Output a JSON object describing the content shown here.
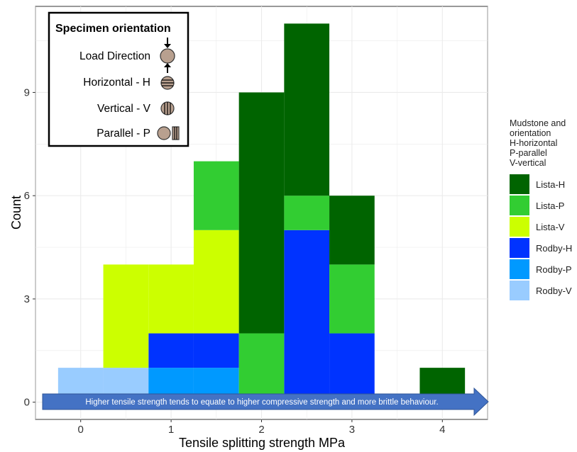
{
  "chart_data": {
    "type": "bar",
    "stacked": true,
    "xlabel": "Tensile splitting strength MPa",
    "ylabel": "Count",
    "xlim": [
      -0.5,
      4.5
    ],
    "ylim": [
      -0.5,
      11.5
    ],
    "x_ticks": [
      "0",
      "1",
      "2",
      "3",
      "4"
    ],
    "y_ticks": [
      "0",
      "3",
      "6",
      "9"
    ],
    "bin_width": 0.5,
    "grid": true,
    "legend_position": "right",
    "legend_title": [
      "Mudstone and",
      "orientation",
      "H-horizontal",
      "P-parallel",
      "V-vertical"
    ],
    "series_order": [
      "Rodby-V",
      "Rodby-P",
      "Rodby-H",
      "Lista-V",
      "Lista-P",
      "Lista-H"
    ],
    "series": [
      {
        "name": "Lista-H",
        "color": "#006400",
        "bins": [
          {
            "x": 2.0,
            "count": 7
          },
          {
            "x": 2.5,
            "count": 5
          },
          {
            "x": 3.0,
            "count": 2
          },
          {
            "x": 4.0,
            "count": 1
          }
        ]
      },
      {
        "name": "Lista-P",
        "color": "#32CD32",
        "bins": [
          {
            "x": 1.5,
            "count": 2
          },
          {
            "x": 2.0,
            "count": 2
          },
          {
            "x": 2.5,
            "count": 1
          },
          {
            "x": 3.0,
            "count": 2
          }
        ]
      },
      {
        "name": "Lista-V",
        "color": "#CCFF00",
        "bins": [
          {
            "x": 0.5,
            "count": 3
          },
          {
            "x": 1.0,
            "count": 2
          },
          {
            "x": 1.5,
            "count": 3
          }
        ]
      },
      {
        "name": "Rodby-H",
        "color": "#0033FF",
        "bins": [
          {
            "x": 1.0,
            "count": 1
          },
          {
            "x": 1.5,
            "count": 1
          },
          {
            "x": 2.5,
            "count": 5
          },
          {
            "x": 3.0,
            "count": 2
          }
        ]
      },
      {
        "name": "Rodby-P",
        "color": "#0099FF",
        "bins": [
          {
            "x": 1.0,
            "count": 1
          },
          {
            "x": 1.5,
            "count": 1
          }
        ]
      },
      {
        "name": "Rodby-V",
        "color": "#99CCFF",
        "bins": [
          {
            "x": 0.0,
            "count": 1
          },
          {
            "x": 0.5,
            "count": 1
          }
        ]
      }
    ],
    "annotation": "Higher tensile strength tends to equate to higher compressive strength and more brittle behaviour."
  },
  "inset": {
    "title": "Specimen orientation",
    "items": [
      "Load Direction",
      "Horizontal - H",
      "Vertical - V",
      "Parallel - P"
    ]
  },
  "colors": {
    "panel_bg": "#ffffff",
    "grid": "#ebebeb",
    "arrow_fill": "#4472C4",
    "specimen_fill": "#B8A08F"
  }
}
